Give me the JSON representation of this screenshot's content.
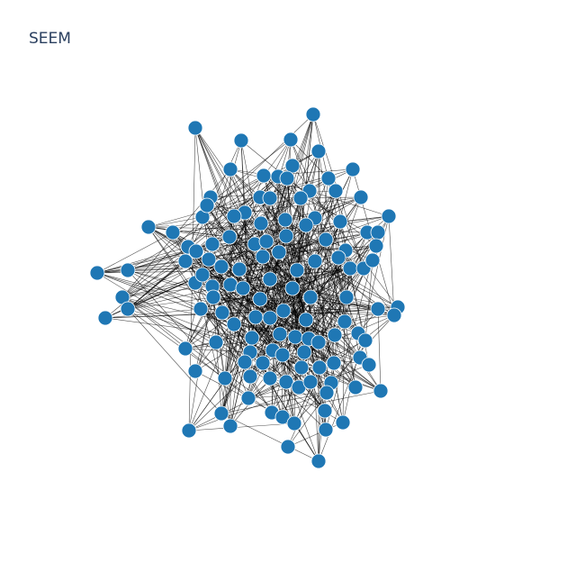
{
  "title": "SEEM",
  "colors": {
    "node": "#1f77b4",
    "edge": "#000000",
    "title": "#2a3f5f",
    "background": "#ffffff"
  },
  "graph": {
    "node_count": 126,
    "seed": 20240607
  }
}
